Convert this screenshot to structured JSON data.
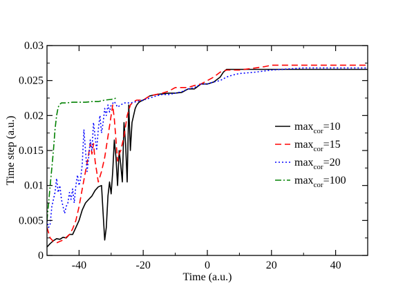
{
  "chart_data": {
    "type": "line",
    "title": "",
    "xlabel": "Time (a.u.)",
    "ylabel": "Time step (a.u.)",
    "xlim": [
      -50,
      50
    ],
    "ylim": [
      0,
      0.03
    ],
    "xticks": [
      -40,
      -20,
      0,
      20,
      40
    ],
    "xtick_labels": [
      "-40",
      "-20",
      "0",
      "20",
      "40"
    ],
    "yticks": [
      0,
      0.005,
      0.01,
      0.015,
      0.02,
      0.025,
      0.03
    ],
    "ytick_labels": [
      "0",
      "0.005",
      "0.01",
      "0.015",
      "0.02",
      "0.025",
      "0.03"
    ],
    "grid": false,
    "legend_position": "right",
    "series": [
      {
        "name_main": "max",
        "name_sub": "cor",
        "name_suffix": "=10",
        "color": "#000000",
        "dash": "solid",
        "x": [
          -50,
          -49,
          -48,
          -47,
          -46,
          -45,
          -44,
          -43,
          -42,
          -41,
          -40,
          -39,
          -38,
          -37,
          -36,
          -35,
          -34,
          -33,
          -32.5,
          -32,
          -31.5,
          -31,
          -30.5,
          -30,
          -29.5,
          -29,
          -28.5,
          -28,
          -27.5,
          -27,
          -26.5,
          -26,
          -25.5,
          -25,
          -24.5,
          -24,
          -23.5,
          -23,
          -22.5,
          -22,
          -21.5,
          -21,
          -20,
          -19,
          -18,
          -16,
          -14,
          -12,
          -10,
          -8,
          -6,
          -4,
          -2,
          0,
          2,
          4,
          5,
          6,
          8,
          10,
          15,
          20,
          30,
          40,
          50
        ],
        "y": [
          0.0012,
          0.0017,
          0.0021,
          0.0024,
          0.0023,
          0.0026,
          0.0025,
          0.003,
          0.003,
          0.004,
          0.005,
          0.0065,
          0.0075,
          0.008,
          0.0085,
          0.0093,
          0.0098,
          0.01,
          0.006,
          0.0022,
          0.004,
          0.0085,
          0.0105,
          0.0088,
          0.012,
          0.0165,
          0.014,
          0.01,
          0.015,
          0.013,
          0.0105,
          0.019,
          0.016,
          0.0105,
          0.0215,
          0.015,
          0.019,
          0.02,
          0.021,
          0.0215,
          0.0218,
          0.022,
          0.0222,
          0.0225,
          0.0228,
          0.023,
          0.0231,
          0.0232,
          0.0232,
          0.0233,
          0.0238,
          0.0238,
          0.0245,
          0.0245,
          0.0248,
          0.0255,
          0.0262,
          0.0266,
          0.0266,
          0.0266,
          0.0266,
          0.0266,
          0.0266,
          0.0266,
          0.0266
        ]
      },
      {
        "name_main": "max",
        "name_sub": "cor",
        "name_suffix": "=15",
        "color": "#ff0000",
        "dash": "dashed",
        "x": [
          -50,
          -49,
          -48,
          -47,
          -46,
          -45,
          -44,
          -43,
          -42,
          -41,
          -40,
          -39,
          -38,
          -37,
          -36.5,
          -36,
          -35.5,
          -35,
          -34.5,
          -34,
          -33,
          -32,
          -31,
          -30,
          -29.5,
          -29,
          -28.5,
          -28,
          -27.5,
          -27,
          -26,
          -25,
          -24,
          -23,
          -22,
          -21,
          -20,
          -18,
          -16,
          -14,
          -12,
          -10,
          -8,
          -6,
          -4,
          -2,
          0,
          2,
          4,
          6,
          8,
          10,
          15,
          18,
          20,
          30,
          40,
          50
        ],
        "y": [
          0.004,
          0.0025,
          0.002,
          0.0018,
          0.002,
          0.0022,
          0.0026,
          0.003,
          0.0038,
          0.005,
          0.007,
          0.0095,
          0.012,
          0.0145,
          0.016,
          0.0145,
          0.016,
          0.0135,
          0.012,
          0.0105,
          0.012,
          0.014,
          0.017,
          0.02,
          0.0215,
          0.0195,
          0.0165,
          0.0135,
          0.0145,
          0.015,
          0.017,
          0.02,
          0.0215,
          0.022,
          0.0222,
          0.0222,
          0.0222,
          0.0228,
          0.023,
          0.0232,
          0.0235,
          0.024,
          0.024,
          0.024,
          0.0243,
          0.0245,
          0.025,
          0.0255,
          0.0262,
          0.0265,
          0.0265,
          0.0265,
          0.0268,
          0.027,
          0.0272,
          0.0272,
          0.0272,
          0.0272
        ]
      },
      {
        "name_main": "max",
        "name_sub": "cor",
        "name_suffix": "=20",
        "color": "#0000ff",
        "dash": "dotted",
        "x": [
          -50,
          -49.5,
          -49,
          -48.5,
          -48,
          -47.5,
          -47,
          -46.5,
          -46,
          -45.5,
          -45,
          -44.5,
          -44,
          -43.5,
          -43,
          -42.5,
          -42,
          -41.5,
          -41,
          -40.5,
          -40,
          -39.5,
          -39,
          -38.5,
          -38,
          -37.5,
          -37,
          -36.5,
          -36,
          -35.5,
          -35,
          -34.5,
          -34,
          -33.5,
          -33,
          -32.5,
          -32,
          -31.5,
          -31,
          -30.5,
          -30,
          -29,
          -28,
          -27,
          -26,
          -24,
          -22,
          -20,
          -18,
          -16,
          -14,
          -12,
          -10,
          -8,
          -6,
          -4,
          -2,
          0,
          2,
          4,
          6,
          8,
          10,
          15,
          20,
          30,
          40,
          50
        ],
        "y": [
          0.005,
          0.004,
          0.0045,
          0.007,
          0.008,
          0.009,
          0.011,
          0.009,
          0.01,
          0.008,
          0.007,
          0.006,
          0.007,
          0.0075,
          0.009,
          0.008,
          0.0095,
          0.0075,
          0.01,
          0.0115,
          0.01,
          0.011,
          0.013,
          0.018,
          0.015,
          0.012,
          0.014,
          0.0165,
          0.015,
          0.019,
          0.017,
          0.015,
          0.018,
          0.02,
          0.0175,
          0.019,
          0.021,
          0.02,
          0.0215,
          0.0205,
          0.0215,
          0.022,
          0.0212,
          0.0215,
          0.0218,
          0.0218,
          0.022,
          0.0222,
          0.0225,
          0.0228,
          0.023,
          0.023,
          0.0232,
          0.0234,
          0.0238,
          0.024,
          0.0245,
          0.0245,
          0.0248,
          0.025,
          0.0255,
          0.0258,
          0.026,
          0.0262,
          0.0265,
          0.0268,
          0.0268,
          0.0268
        ]
      },
      {
        "name_main": "max",
        "name_sub": "cor",
        "name_suffix": "=100",
        "color": "#008000",
        "dash": "dashdot",
        "x": [
          -50,
          -49.5,
          -49,
          -48.5,
          -48,
          -47.5,
          -47,
          -46.5,
          -46,
          -45.5,
          -45,
          -44,
          -42,
          -40,
          -38,
          -36,
          -34,
          -32,
          -30,
          -29,
          -28.5
        ],
        "y": [
          0.005,
          0.0075,
          0.01,
          0.0125,
          0.015,
          0.018,
          0.02,
          0.0212,
          0.0216,
          0.0218,
          0.0218,
          0.0218,
          0.0219,
          0.0219,
          0.0219,
          0.022,
          0.022,
          0.0222,
          0.0223,
          0.0224,
          0.0225
        ]
      }
    ]
  }
}
